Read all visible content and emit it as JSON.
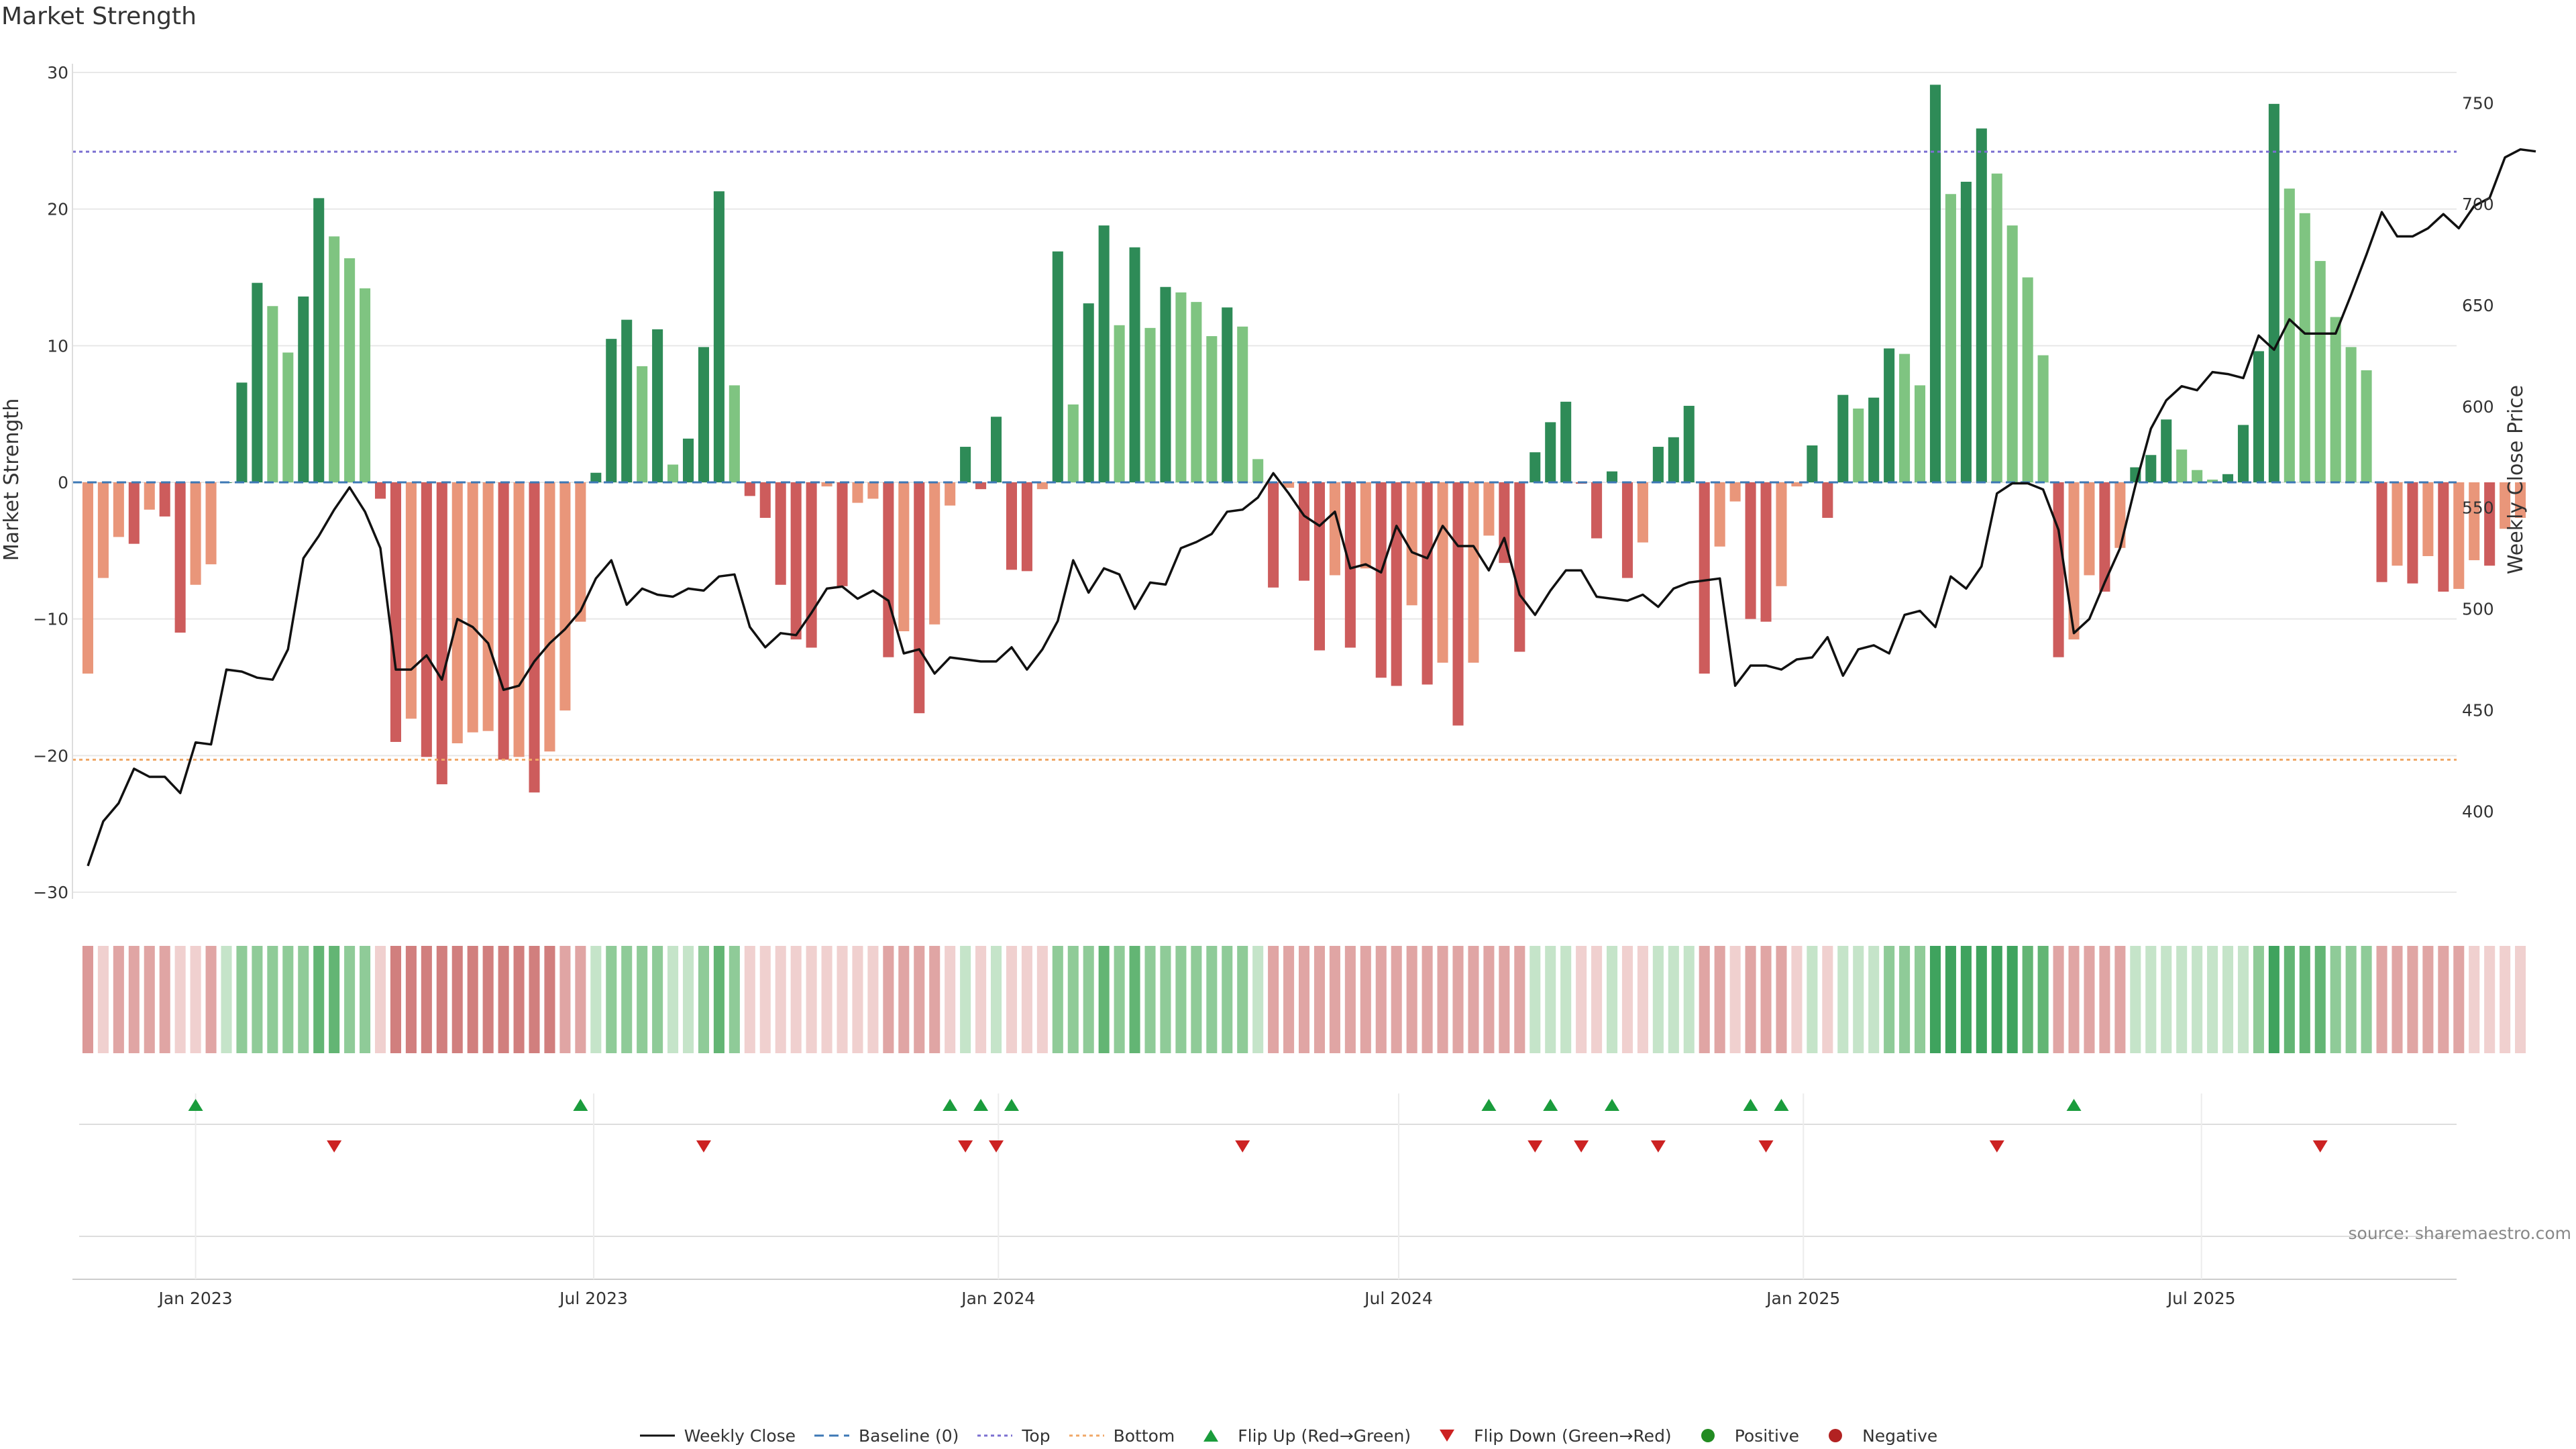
{
  "title": "Market Strength",
  "source_text": "source: sharemaestro.com",
  "colors": {
    "strong_green": "#2e8b57",
    "light_green": "#7fc481",
    "strong_red": "#cd5c5c",
    "light_red": "#e9967a",
    "line": "#111111",
    "baseline": "#3d78b5",
    "top": "#7b6fd1",
    "bottom": "#f0a868",
    "flip_up": "#1a9c3c",
    "flip_down": "#cc2222",
    "positive": "#228b22",
    "negative": "#b22222"
  },
  "legend": [
    {
      "key": "weekly_close",
      "label": "Weekly Close",
      "color": "#111111"
    },
    {
      "key": "baseline",
      "label": "Baseline (0)",
      "color": "#3d78b5"
    },
    {
      "key": "top",
      "label": "Top",
      "color": "#7b6fd1"
    },
    {
      "key": "bottom",
      "label": "Bottom",
      "color": "#f0a868"
    },
    {
      "key": "flip_up",
      "label": "Flip Up (Red→Green)",
      "color": "#1a9c3c"
    },
    {
      "key": "flip_down",
      "label": "Flip Down (Green→Red)",
      "color": "#cc2222"
    },
    {
      "key": "positive",
      "label": "Positive",
      "color": "#228b22"
    },
    {
      "key": "negative",
      "label": "Negative",
      "color": "#b22222"
    }
  ],
  "chart_data": {
    "type": "bar+line",
    "title": "Market Strength",
    "ylabel_left": "Market Strength",
    "ylabel_right": "Weekly Close Price",
    "ylim_left": [
      -30,
      30
    ],
    "yticks_left": [
      30,
      20,
      10,
      0,
      -10,
      -20,
      -30
    ],
    "yticks_left_labels": [
      "30",
      "20",
      "10",
      "0",
      "−10",
      "−20",
      "−30"
    ],
    "ylim_right": [
      360,
      765
    ],
    "yticks_right": [
      750,
      700,
      650,
      600,
      550,
      500,
      450,
      400
    ],
    "top_level": 24.2,
    "bottom_level": -20.3,
    "baseline": 0,
    "x_start": "2022-11-13",
    "week_step_days": 7,
    "date_range": [
      "2022-11-06",
      "2025-10-25"
    ],
    "x_ticks": [
      {
        "label": "Jan 2023",
        "date": "2023-01-01"
      },
      {
        "label": "Jul 2023",
        "date": "2023-07-01"
      },
      {
        "label": "Jan 2024",
        "date": "2024-01-01"
      },
      {
        "label": "Jul 2024",
        "date": "2024-07-01"
      },
      {
        "label": "Jan 2025",
        "date": "2025-01-01"
      },
      {
        "label": "Jul 2025",
        "date": "2025-07-01"
      }
    ],
    "strength": [
      -14,
      -7,
      -4,
      -4.5,
      -2,
      -2.5,
      -11,
      -7.5,
      -6,
      0,
      7.3,
      14.6,
      12.9,
      9.5,
      13.6,
      20.8,
      18,
      16.4,
      14.2,
      -1.2,
      -19,
      -17.3,
      -20.1,
      -22.1,
      -19.1,
      -18.3,
      -18.2,
      -20.3,
      -20.1,
      -22.7,
      -19.7,
      -16.7,
      -10.2,
      0.7,
      10.5,
      11.9,
      8.5,
      11.2,
      1.3,
      3.2,
      9.9,
      21.3,
      7.1,
      -1,
      -2.6,
      -7.5,
      -11.5,
      -12.1,
      -0.3,
      -7.6,
      -1.5,
      -1.2,
      -12.8,
      -10.9,
      -16.9,
      -10.4,
      -1.7,
      2.6,
      -0.5,
      4.8,
      -6.4,
      -6.5,
      -0.5,
      16.9,
      5.7,
      13.1,
      18.8,
      11.5,
      17.2,
      11.3,
      14.3,
      13.9,
      13.2,
      10.7,
      12.8,
      11.4,
      1.7,
      -7.7,
      -0.4,
      -7.2,
      -12.3,
      -6.8,
      -12.1,
      -6.3,
      -14.3,
      -14.9,
      -9,
      -14.8,
      -13.2,
      -17.8,
      -13.2,
      -3.9,
      -5.9,
      -12.4,
      2.2,
      4.4,
      5.9,
      -0.1,
      -4.1,
      0.8,
      -7,
      -4.4,
      2.6,
      3.3,
      5.6,
      -14,
      -4.7,
      -1.4,
      -10,
      -10.2,
      -7.6,
      -0.3,
      2.7,
      -2.6,
      6.4,
      5.4,
      6.2,
      9.8,
      9.4,
      7.1,
      29.1,
      21.1,
      22,
      25.9,
      22.6,
      18.8,
      15,
      9.3,
      -12.8,
      -11.5,
      -6.8,
      -8,
      -4.8,
      1.1,
      2,
      4.6,
      2.4,
      0.9,
      0.2,
      0.6,
      4.2,
      9.6,
      27.7,
      21.5,
      19.7,
      16.2,
      12.1,
      9.9,
      8.2,
      -7.3,
      -6.1,
      -7.4,
      -5.4,
      -8,
      -7.8,
      -5.7,
      -6.1,
      -3.4,
      -2.6
    ],
    "weekly_close": [
      373,
      395,
      404,
      421,
      417,
      417,
      409,
      434,
      433,
      470,
      469,
      466,
      465,
      480,
      525,
      536,
      549,
      560,
      548,
      530,
      470,
      470,
      477,
      465,
      495,
      491,
      483,
      460,
      462,
      474,
      483,
      490,
      499,
      515,
      524,
      502,
      510,
      507,
      506,
      510,
      509,
      516,
      517,
      491,
      481,
      488,
      487,
      498,
      510,
      511,
      505,
      509,
      504,
      478,
      480,
      468,
      476,
      475,
      474,
      474,
      481,
      470,
      480,
      494,
      524,
      508,
      520,
      517,
      500,
      513,
      512,
      530,
      533,
      537,
      548,
      549,
      555,
      567,
      557,
      546,
      541,
      548,
      520,
      522,
      518,
      541,
      528,
      525,
      541,
      531,
      531,
      519,
      535,
      507,
      497,
      509,
      519,
      519,
      506,
      505,
      504,
      507,
      501,
      510,
      513,
      514,
      515,
      462,
      472,
      472,
      470,
      475,
      476,
      486,
      467,
      480,
      482,
      478,
      497,
      499,
      491,
      516,
      510,
      521,
      557,
      562,
      562,
      559,
      539,
      488,
      495,
      513,
      530,
      561,
      589,
      603,
      610,
      608,
      617,
      616,
      614,
      635,
      628,
      643,
      636,
      636,
      636,
      655,
      675,
      696,
      684,
      684,
      688,
      695,
      688,
      699,
      703,
      723,
      727,
      726
    ]
  },
  "bands": {
    "levels": [
      0,
      -1,
      -2,
      -2,
      -2,
      -2,
      -1,
      -1,
      -2,
      1,
      2,
      2,
      2,
      2,
      2,
      3,
      3,
      2,
      2,
      -1,
      -3,
      -3,
      -3,
      -3,
      -3,
      -3,
      -3,
      -3,
      -3,
      -3,
      -3,
      -2,
      -2,
      1,
      2,
      2,
      2,
      2,
      1,
      1,
      2,
      3,
      2,
      -1,
      -1,
      -1,
      -1,
      -1,
      -1,
      -1,
      -1,
      -1,
      -2,
      -2,
      -2,
      -2,
      -1,
      1,
      -1,
      1,
      -1,
      -1,
      -1,
      2,
      2,
      2,
      3,
      2,
      3,
      2,
      2,
      2,
      2,
      2,
      2,
      2,
      1,
      -2,
      -2,
      -2,
      -2,
      -2,
      -2,
      -2,
      -2,
      -2,
      -2,
      -2,
      -2,
      -2,
      -2,
      -2,
      -2,
      -2,
      1,
      1,
      1,
      -1,
      -1,
      1,
      -1,
      -1,
      1,
      1,
      1,
      -2,
      -2,
      -1,
      -2,
      -2,
      -2,
      -1,
      1,
      -1,
      1,
      1,
      1,
      2,
      2,
      2,
      4,
      4,
      4,
      4,
      4,
      4,
      3,
      3,
      -2,
      -2,
      -2,
      -2,
      -2,
      1,
      1,
      1,
      1,
      1,
      1,
      1,
      1,
      2,
      4,
      3,
      3,
      3,
      2,
      2,
      2,
      -2,
      -2,
      -2,
      -2,
      -2,
      -2,
      -1,
      -1,
      -1,
      -1
    ]
  },
  "flip_up_dates": [
    "2023-01-01",
    "2023-06-25",
    "2023-12-10",
    "2023-12-24",
    "2024-01-07",
    "2024-08-11",
    "2024-09-08",
    "2024-10-06",
    "2024-12-08",
    "2024-12-22",
    "2025-05-04"
  ],
  "flip_down_dates": [
    "2023-03-05",
    "2023-08-20",
    "2023-12-17",
    "2023-12-31",
    "2024-04-21",
    "2024-09-01",
    "2024-09-22",
    "2024-10-27",
    "2024-12-15",
    "2025-03-30",
    "2025-08-24"
  ]
}
